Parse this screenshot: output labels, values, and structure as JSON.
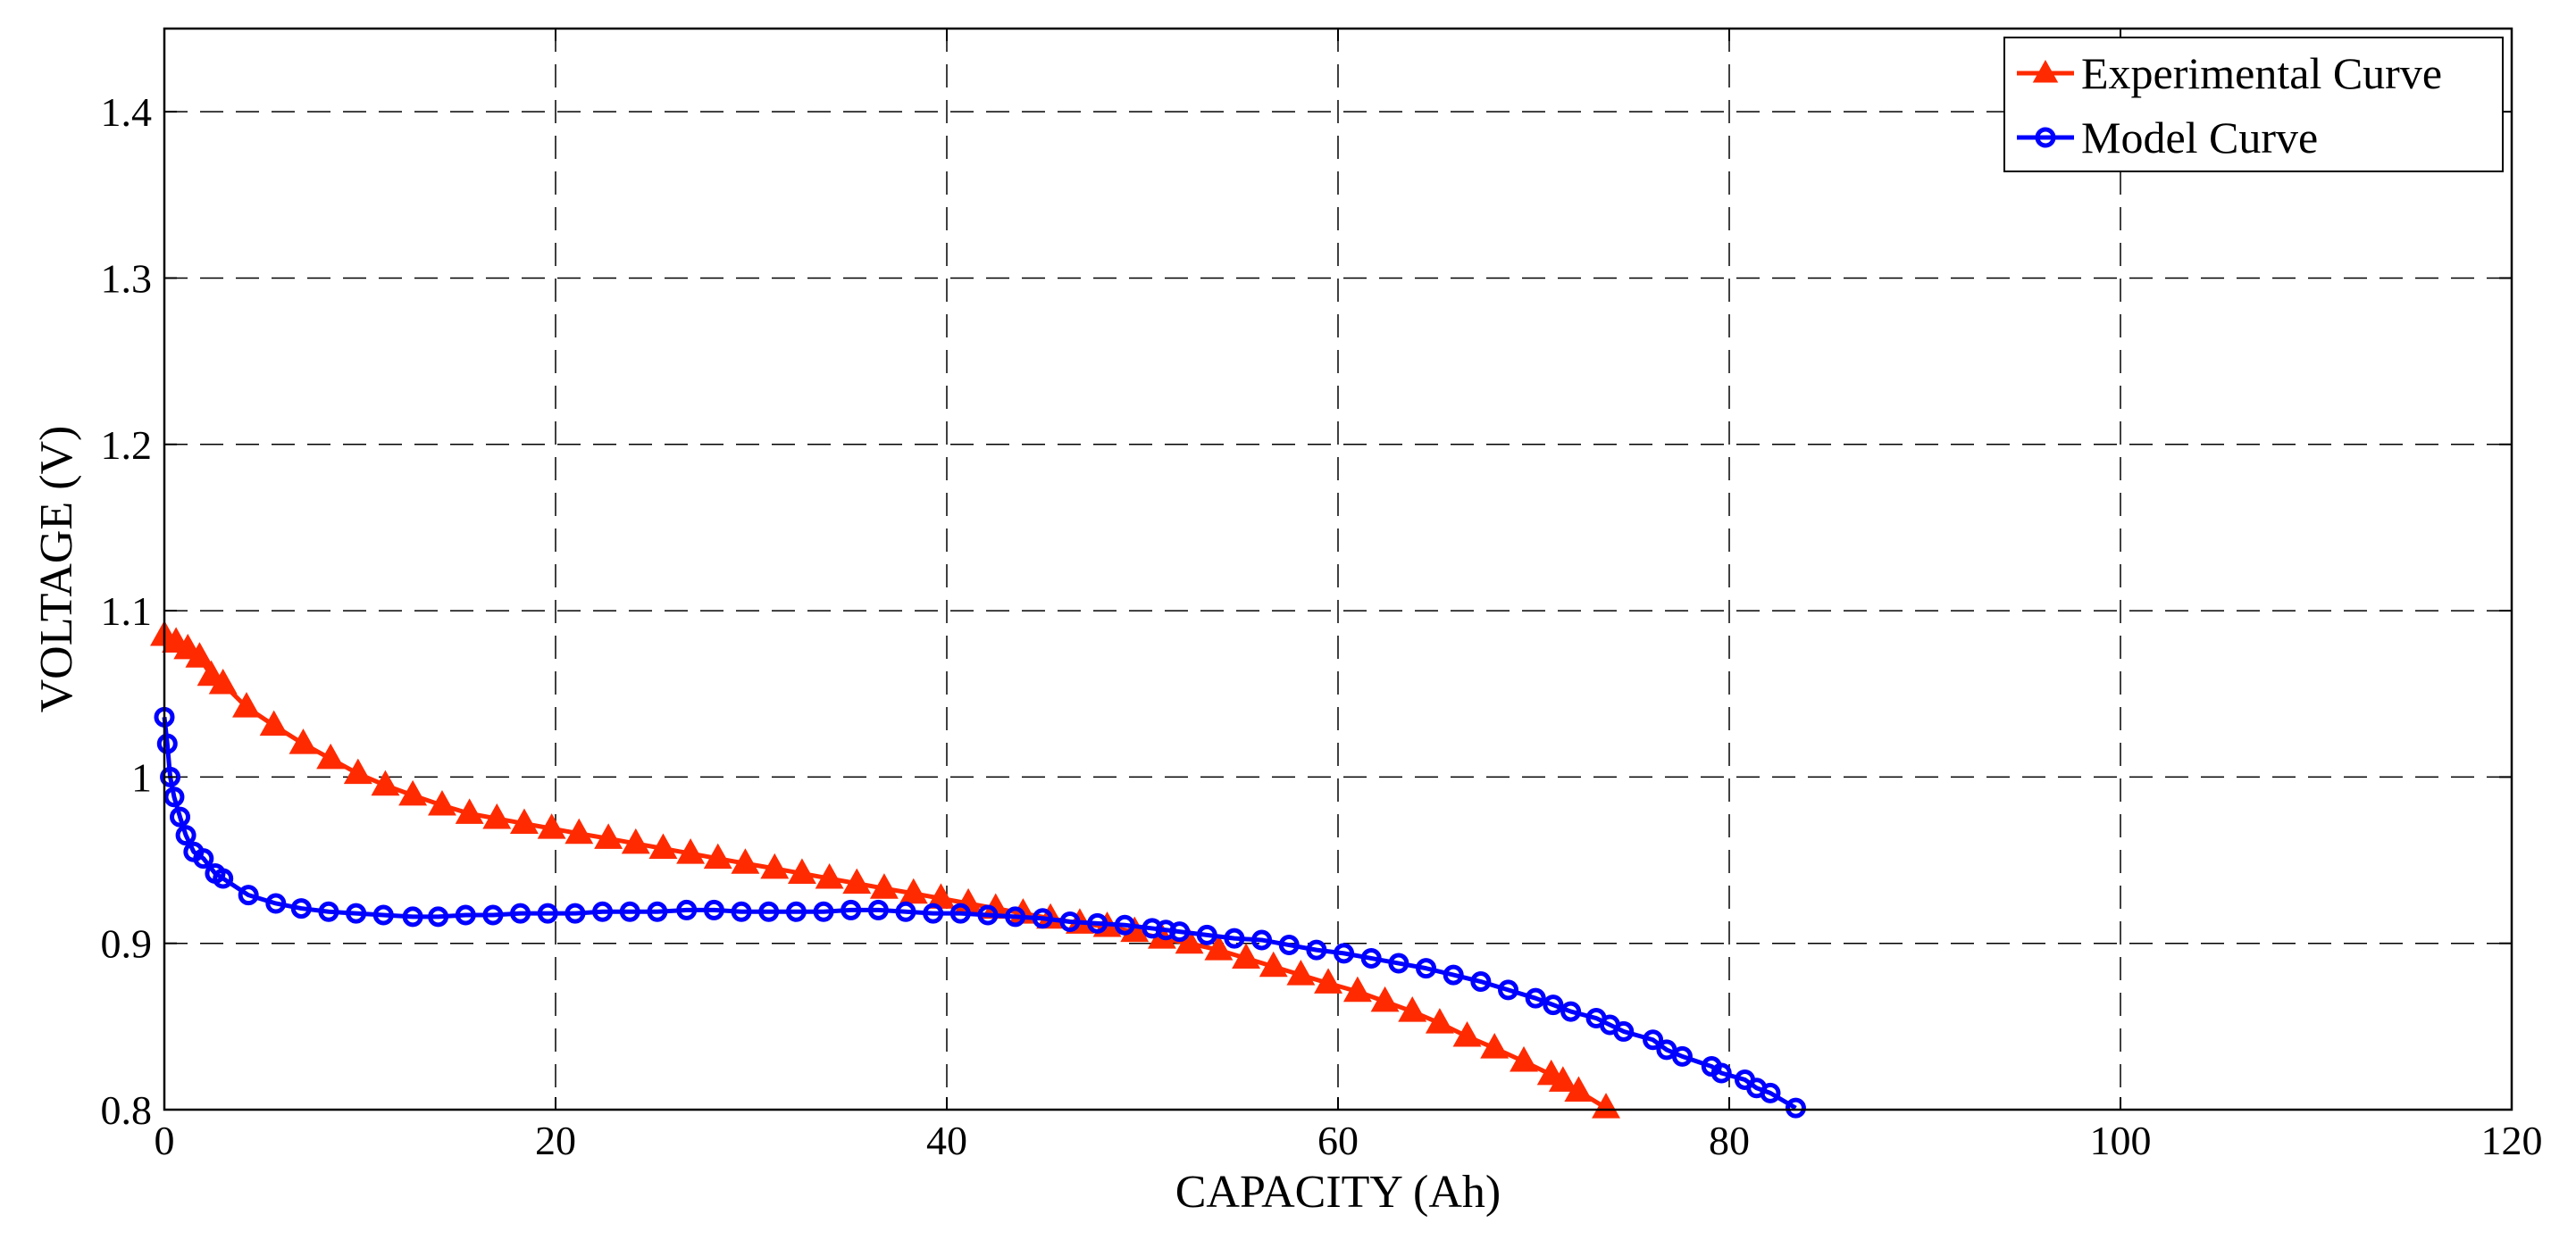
{
  "chart_data": {
    "type": "line",
    "title": "",
    "xlabel": "CAPACITY (Ah)",
    "ylabel": "VOLTAGE (V)",
    "xlim": [
      0,
      120
    ],
    "ylim": [
      0.8,
      1.45
    ],
    "x_ticks": [
      0,
      20,
      40,
      60,
      80,
      100,
      120
    ],
    "y_ticks": [
      0.8,
      0.9,
      1,
      1.1,
      1.2,
      1.3,
      1.4
    ],
    "x_tick_labels": [
      "0",
      "20",
      "40",
      "60",
      "80",
      "100",
      "120"
    ],
    "y_tick_labels": [
      "0.8",
      "0.9",
      "1",
      "1.1",
      "1.2",
      "1.3",
      "1.4"
    ],
    "grid": true,
    "legend_position": "top-right",
    "series": [
      {
        "name": "Experimental Curve",
        "color": "#ff2a00",
        "marker": "triangle",
        "x": [
          0,
          0.6,
          1.2,
          1.8,
          2.4,
          3.0,
          4.2,
          5.6,
          7.1,
          8.5,
          9.9,
          11.3,
          12.7,
          14.2,
          15.6,
          17.0,
          18.4,
          19.8,
          21.2,
          22.7,
          24.1,
          25.5,
          26.9,
          28.3,
          29.7,
          31.2,
          32.6,
          34.0,
          35.4,
          36.8,
          38.3,
          39.7,
          41.1,
          42.5,
          43.9,
          45.3,
          46.8,
          48.2,
          49.6,
          51.0,
          52.4,
          53.9,
          55.3,
          56.7,
          58.1,
          59.5,
          61.0,
          62.4,
          63.8,
          65.2,
          66.6,
          68.0,
          69.5,
          70.9,
          71.5,
          72.3,
          73.7
        ],
        "y": [
          1.085,
          1.081,
          1.077,
          1.072,
          1.061,
          1.056,
          1.042,
          1.031,
          1.02,
          1.011,
          1.002,
          0.995,
          0.989,
          0.983,
          0.978,
          0.975,
          0.972,
          0.969,
          0.966,
          0.963,
          0.96,
          0.957,
          0.954,
          0.951,
          0.948,
          0.945,
          0.942,
          0.939,
          0.936,
          0.933,
          0.93,
          0.927,
          0.924,
          0.921,
          0.918,
          0.915,
          0.912,
          0.91,
          0.907,
          0.903,
          0.9,
          0.896,
          0.891,
          0.886,
          0.881,
          0.876,
          0.871,
          0.865,
          0.859,
          0.852,
          0.844,
          0.837,
          0.829,
          0.821,
          0.817,
          0.811,
          0.801
        ]
      },
      {
        "name": "Model Curve",
        "color": "#0000ff",
        "marker": "circle",
        "x": [
          0,
          0.15,
          0.3,
          0.5,
          0.8,
          1.1,
          1.5,
          2.0,
          2.6,
          3.0,
          4.3,
          5.7,
          7.0,
          8.4,
          9.8,
          11.2,
          12.7,
          14.0,
          15.4,
          16.8,
          18.2,
          19.6,
          21.0,
          22.4,
          23.8,
          25.2,
          26.7,
          28.1,
          29.5,
          30.9,
          32.3,
          33.7,
          35.1,
          36.5,
          37.9,
          39.3,
          40.7,
          42.1,
          43.5,
          44.9,
          46.3,
          47.7,
          49.1,
          50.5,
          51.2,
          51.9,
          53.3,
          54.7,
          56.1,
          57.5,
          58.9,
          60.3,
          61.7,
          63.1,
          64.5,
          65.9,
          67.3,
          68.7,
          70.1,
          71.0,
          71.9,
          73.2,
          73.9,
          74.6,
          76.1,
          76.8,
          77.6,
          79.1,
          79.6,
          80.8,
          81.4,
          82.1,
          83.4
        ],
        "y": [
          1.036,
          1.02,
          1.0,
          0.988,
          0.976,
          0.965,
          0.955,
          0.951,
          0.942,
          0.939,
          0.929,
          0.924,
          0.921,
          0.919,
          0.918,
          0.917,
          0.916,
          0.916,
          0.917,
          0.917,
          0.918,
          0.918,
          0.918,
          0.919,
          0.919,
          0.919,
          0.92,
          0.92,
          0.919,
          0.919,
          0.919,
          0.919,
          0.92,
          0.92,
          0.919,
          0.918,
          0.918,
          0.917,
          0.916,
          0.915,
          0.913,
          0.912,
          0.911,
          0.909,
          0.908,
          0.907,
          0.905,
          0.903,
          0.902,
          0.899,
          0.896,
          0.894,
          0.891,
          0.888,
          0.885,
          0.881,
          0.877,
          0.872,
          0.867,
          0.863,
          0.859,
          0.855,
          0.851,
          0.847,
          0.842,
          0.836,
          0.832,
          0.826,
          0.822,
          0.818,
          0.813,
          0.81,
          0.801
        ]
      }
    ]
  }
}
